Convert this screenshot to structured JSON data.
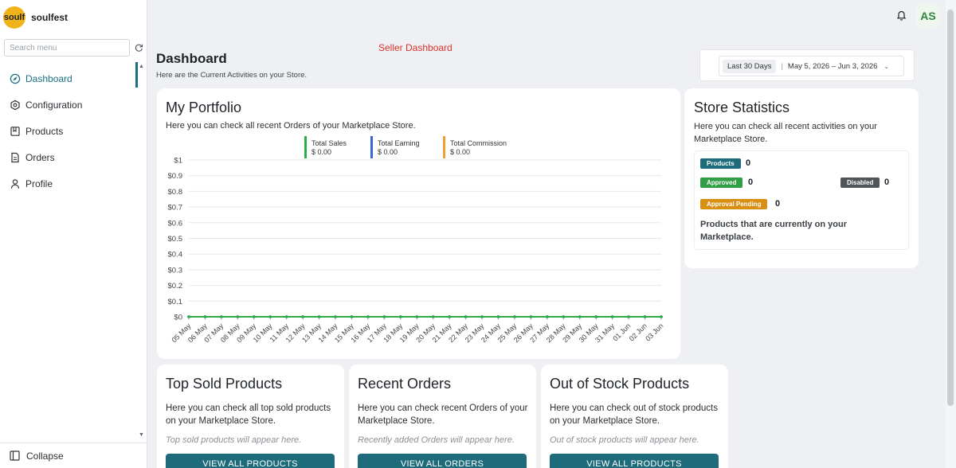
{
  "brand": {
    "logo_text": "soulf",
    "name": "soulfest"
  },
  "sidebar": {
    "search_placeholder": "Search menu",
    "items": [
      {
        "label": "Dashboard",
        "icon": "dashboard-icon",
        "active": true
      },
      {
        "label": "Configuration",
        "icon": "settings-hex-icon"
      },
      {
        "label": "Products",
        "icon": "book-icon"
      },
      {
        "label": "Orders",
        "icon": "document-icon"
      },
      {
        "label": "Profile",
        "icon": "user-icon"
      }
    ],
    "collapse_label": "Collapse"
  },
  "topbar": {
    "avatar_initials": "AS"
  },
  "header": {
    "seller_label": "Seller Dashboard",
    "title": "Dashboard",
    "subtitle": "Here are the Current Activities on your Store.",
    "date_preset": "Last 30 Days",
    "date_range": "May 5, 2026 – Jun 3, 2026"
  },
  "portfolio": {
    "title": "My Portfolio",
    "desc": "Here you can check all recent Orders of your Marketplace Store.",
    "legend": [
      {
        "name": "Total Sales",
        "value": "$ 0.00",
        "color": "#2bab4a"
      },
      {
        "name": "Total Earning",
        "value": "$ 0.00",
        "color": "#3b68d6"
      },
      {
        "name": "Total Commission",
        "value": "$ 0.00",
        "color": "#f0a030"
      }
    ]
  },
  "chart_data": {
    "type": "line",
    "x": [
      "05 May",
      "06 May",
      "07 May",
      "08 May",
      "09 May",
      "10 May",
      "11 May",
      "12 May",
      "13 May",
      "14 May",
      "15 May",
      "16 May",
      "17 May",
      "18 May",
      "19 May",
      "20 May",
      "21 May",
      "22 May",
      "23 May",
      "24 May",
      "25 May",
      "26 May",
      "27 May",
      "28 May",
      "29 May",
      "30 May",
      "31 May",
      "01 Jun",
      "02 Jun",
      "03 Jun"
    ],
    "yticks": [
      "$0",
      "$0.1",
      "$0.2",
      "$0.3",
      "$0.4",
      "$0.5",
      "$0.6",
      "$0.7",
      "$0.8",
      "$0.9",
      "$1"
    ],
    "ylim": [
      0,
      1
    ],
    "series": [
      {
        "name": "Total Sales",
        "color": "#2bab4a",
        "values": [
          0,
          0,
          0,
          0,
          0,
          0,
          0,
          0,
          0,
          0,
          0,
          0,
          0,
          0,
          0,
          0,
          0,
          0,
          0,
          0,
          0,
          0,
          0,
          0,
          0,
          0,
          0,
          0,
          0,
          0
        ]
      },
      {
        "name": "Total Earning",
        "color": "#3b68d6",
        "values": [
          0,
          0,
          0,
          0,
          0,
          0,
          0,
          0,
          0,
          0,
          0,
          0,
          0,
          0,
          0,
          0,
          0,
          0,
          0,
          0,
          0,
          0,
          0,
          0,
          0,
          0,
          0,
          0,
          0,
          0
        ]
      },
      {
        "name": "Total Commission",
        "color": "#f0a030",
        "values": [
          0,
          0,
          0,
          0,
          0,
          0,
          0,
          0,
          0,
          0,
          0,
          0,
          0,
          0,
          0,
          0,
          0,
          0,
          0,
          0,
          0,
          0,
          0,
          0,
          0,
          0,
          0,
          0,
          0,
          0
        ]
      }
    ],
    "grid": true
  },
  "store_stats": {
    "title": "Store Statistics",
    "desc": "Here you can check all recent activities on your Marketplace Store.",
    "products_label": "Products",
    "products_count": "0",
    "products_color": "#1d6b7b",
    "approved_label": "Approved",
    "approved_count": "0",
    "approved_color": "#2f9e44",
    "disabled_label": "Disabled",
    "disabled_count": "0",
    "disabled_color": "#505559",
    "pending_label": "Approval Pending",
    "pending_count": "0",
    "pending_color": "#d99012",
    "note": "Products that are currently on your Marketplace."
  },
  "top_sold": {
    "title": "Top Sold Products",
    "desc": "Here you can check all top sold products on your Marketplace Store.",
    "empty": "Top sold products will appear here.",
    "button": "VIEW ALL PRODUCTS"
  },
  "recent_orders": {
    "title": "Recent Orders",
    "desc": "Here you can check recent Orders of your Marketplace Store.",
    "empty": "Recently added Orders will appear here.",
    "button": "VIEW ALL ORDERS"
  },
  "out_of_stock": {
    "title": "Out of Stock Products",
    "desc": "Here you can check out of stock products on your Marketplace Store.",
    "empty": "Out of stock products will appear here.",
    "button": "VIEW ALL PRODUCTS"
  }
}
